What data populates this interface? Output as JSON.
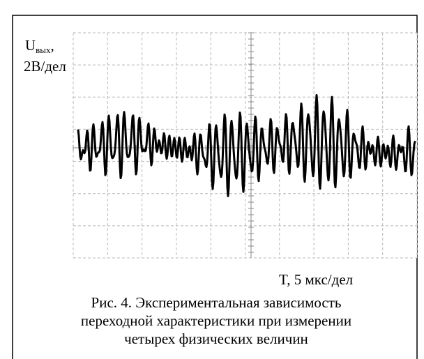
{
  "axis_labels": {
    "y_symbol": "U",
    "y_subscript": "вых",
    "y_suffix": ",",
    "y_scale": "2В/дел",
    "x_label": "T, 5 мкс/дел"
  },
  "caption": {
    "lines": [
      "Рис. 4. Экспериментальная зависимость",
      "переходной характеристики при измерении",
      "четырех физических величин"
    ]
  }
}
